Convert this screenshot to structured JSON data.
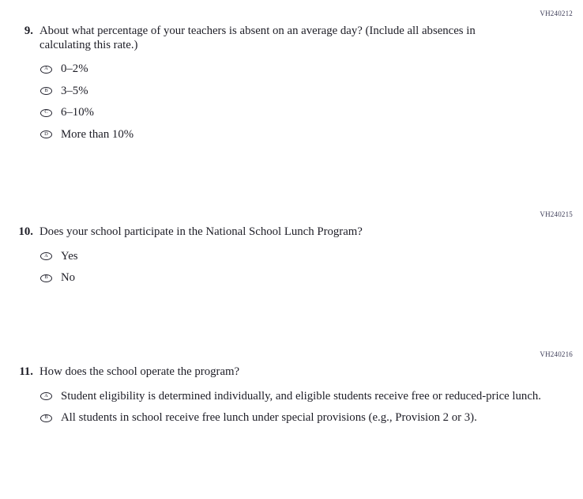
{
  "page": {
    "background_color": "#ffffff",
    "text_color": "#1d1d26"
  },
  "questions": [
    {
      "code": "VH240212",
      "number": "9.",
      "text": "About what percentage of your teachers is absent on an average day? (Include all absences in calculating this rate.)",
      "options": [
        {
          "letter": "A",
          "label": "0–2%"
        },
        {
          "letter": "B",
          "label": "3–5%"
        },
        {
          "letter": "C",
          "label": "6–10%"
        },
        {
          "letter": "D",
          "label": "More than 10%"
        }
      ]
    },
    {
      "code": "VH240215",
      "number": "10.",
      "text": "Does your school participate in the National School Lunch Program?",
      "options": [
        {
          "letter": "A",
          "label": "Yes"
        },
        {
          "letter": "B",
          "label": "No"
        }
      ]
    },
    {
      "code": "VH240216",
      "number": "11.",
      "text": "How does the school operate the program?",
      "options": [
        {
          "letter": "A",
          "label": "Student eligibility is determined individually, and eligible students receive free or reduced-price lunch."
        },
        {
          "letter": "B",
          "label": "All students in school receive free lunch under special provisions (e.g., Provision 2 or 3)."
        }
      ]
    }
  ]
}
